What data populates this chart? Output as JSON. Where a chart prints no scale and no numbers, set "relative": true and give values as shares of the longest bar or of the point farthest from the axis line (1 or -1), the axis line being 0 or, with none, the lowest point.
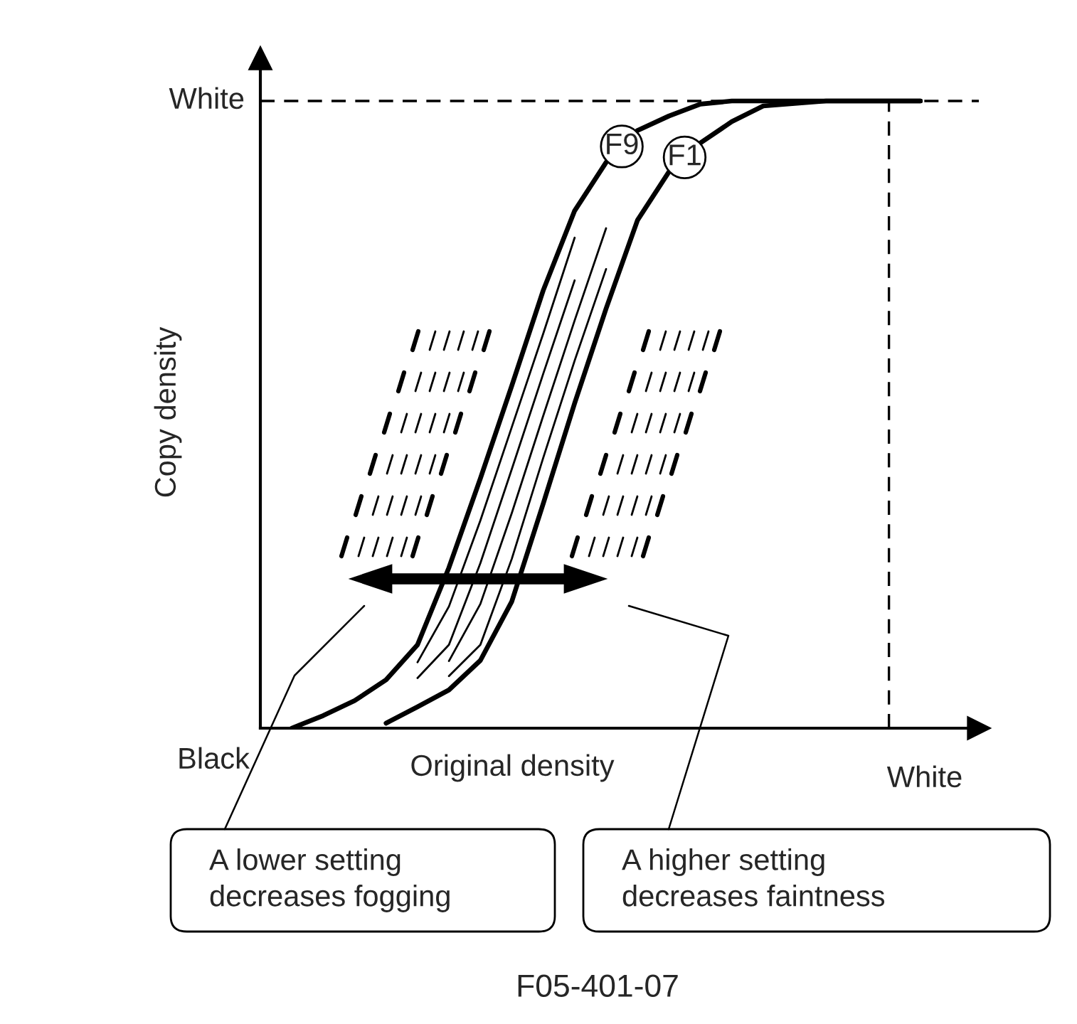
{
  "chart_data": {
    "type": "line",
    "relative": true,
    "xlabel": "Original density",
    "ylabel": "Copy density",
    "marker": "none",
    "line_style": "solid",
    "categories": [
      null,
      null,
      null,
      null,
      null,
      null,
      null,
      null,
      null,
      null,
      null,
      null,
      null,
      null,
      null,
      null,
      null,
      null,
      null,
      null,
      null,
      null
    ],
    "series": [
      {
        "name": "F9",
        "color": "#000000",
        "values": [
          null,
          0,
          0.02,
          0.044,
          0.077,
          0.133,
          0.256,
          0.398,
          0.546,
          0.698,
          0.825,
          0.902,
          0.953,
          0.976,
          0.995,
          1,
          1,
          1,
          1,
          1,
          1,
          1
        ]
      },
      {
        "color": "#000000",
        "values": [
          null,
          null,
          null,
          null,
          null,
          0.105,
          0.194,
          0.331,
          0.48,
          0.629,
          0.782,
          null,
          null,
          null,
          null,
          null,
          null,
          null,
          null,
          null,
          null,
          null
        ]
      },
      {
        "color": "#000000",
        "values": [
          null,
          null,
          null,
          null,
          null,
          0.08,
          0.133,
          0.263,
          0.413,
          0.565,
          0.714,
          null,
          null,
          null,
          null,
          null,
          null,
          null,
          null,
          null,
          null,
          null
        ]
      },
      {
        "color": "#000000",
        "values": [
          null,
          null,
          null,
          null,
          null,
          null,
          0.107,
          0.198,
          0.343,
          0.498,
          0.65,
          0.797,
          null,
          null,
          null,
          null,
          null,
          null,
          null,
          null,
          null,
          null
        ]
      },
      {
        "color": "#000000",
        "values": [
          null,
          null,
          null,
          null,
          null,
          null,
          0.083,
          0.133,
          0.27,
          0.431,
          0.586,
          0.732,
          null,
          null,
          null,
          null,
          null,
          null,
          null,
          null,
          null,
          null
        ]
      },
      {
        "name": "F1",
        "color": "#000000",
        "values": [
          null,
          null,
          null,
          null,
          0.008,
          0.034,
          0.061,
          0.108,
          0.202,
          0.358,
          0.518,
          0.669,
          0.81,
          0.887,
          0.933,
          0.967,
          0.992,
          0.996,
          1,
          1,
          1,
          1
        ]
      }
    ],
    "annotations": [
      "White",
      "Black",
      "White",
      "A lower setting\ndecreases fogging",
      "A higher setting\ndecreases faintness",
      "F05-401-07"
    ]
  }
}
